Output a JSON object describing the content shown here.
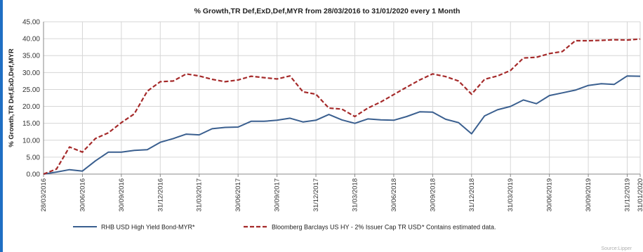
{
  "chart_data": {
    "type": "line",
    "title": "% Growth,TR Def,ExD,Def,MYR from 28/03/2016 to 31/01/2020 every 1 Month",
    "ylabel": "% Growth,TR Def,ExD,Def,MYR",
    "xlabel": "",
    "ylim": [
      0,
      45
    ],
    "yticks": [
      "0.00",
      "5.00",
      "10.00",
      "15.00",
      "20.00",
      "25.00",
      "30.00",
      "35.00",
      "40.00",
      "45.00"
    ],
    "grid": true,
    "legend_position": "bottom",
    "x": [
      "28/03/2016",
      "30/04/2016",
      "31/05/2016",
      "30/06/2016",
      "31/07/2016",
      "31/08/2016",
      "30/09/2016",
      "31/10/2016",
      "30/11/2016",
      "31/12/2016",
      "31/01/2017",
      "28/02/2017",
      "31/03/2017",
      "30/04/2017",
      "31/05/2017",
      "30/06/2017",
      "31/07/2017",
      "31/08/2017",
      "30/09/2017",
      "31/10/2017",
      "30/11/2017",
      "31/12/2017",
      "31/01/2018",
      "28/02/2018",
      "31/03/2018",
      "30/04/2018",
      "31/05/2018",
      "30/06/2018",
      "31/07/2018",
      "31/08/2018",
      "30/09/2018",
      "31/10/2018",
      "30/11/2018",
      "31/12/2018",
      "31/01/2019",
      "28/02/2019",
      "31/03/2019",
      "30/04/2019",
      "31/05/2019",
      "30/06/2019",
      "31/07/2019",
      "31/08/2019",
      "30/09/2019",
      "31/10/2019",
      "30/11/2019",
      "31/12/2019",
      "31/01/2020"
    ],
    "xtick_labels": [
      "28/03/2016",
      "30/06/2016",
      "30/09/2016",
      "31/12/2016",
      "31/03/2017",
      "30/06/2017",
      "30/09/2017",
      "31/12/2017",
      "31/03/2018",
      "30/06/2018",
      "30/09/2018",
      "31/12/2018",
      "31/03/2019",
      "30/06/2019",
      "30/09/2019",
      "31/12/2019",
      "31/01/2020"
    ],
    "series": [
      {
        "name": "RHB USD High Yield Bond-MYR*",
        "color": "#3a5f8f",
        "style": "solid",
        "values": [
          0.0,
          0.6,
          1.3,
          0.9,
          3.9,
          6.5,
          6.5,
          7.0,
          7.2,
          9.4,
          10.5,
          11.8,
          11.6,
          13.4,
          13.8,
          13.9,
          15.6,
          15.6,
          15.9,
          16.5,
          15.4,
          15.9,
          17.6,
          16.0,
          15.0,
          16.3,
          16.0,
          15.9,
          17.0,
          18.4,
          18.3,
          16.2,
          15.2,
          11.9,
          17.2,
          19.0,
          20.0,
          21.9,
          20.8,
          23.2,
          24.0,
          24.8,
          26.2,
          26.7,
          26.5,
          29.0,
          28.9
        ]
      },
      {
        "name": "Bloomberg Barclays US HY - 2% Issuer Cap TR USD",
        "color": "#a52a2a",
        "style": "dashed",
        "values": [
          0.0,
          1.5,
          8.0,
          6.5,
          10.5,
          12.2,
          15.2,
          17.8,
          24.5,
          27.3,
          27.5,
          29.6,
          29.0,
          28.0,
          27.3,
          27.8,
          28.9,
          28.5,
          28.1,
          29.0,
          24.3,
          23.6,
          19.5,
          19.2,
          17.0,
          19.5,
          21.3,
          23.5,
          25.7,
          27.8,
          29.6,
          28.8,
          27.5,
          23.6,
          28.0,
          29.0,
          30.6,
          34.3,
          34.5,
          35.6,
          36.2,
          39.4,
          39.4,
          39.5,
          39.7,
          39.6,
          39.9
        ]
      }
    ],
    "legend_note": "*  Contains estimated data."
  },
  "footer": {
    "source": "Source:Lipper"
  }
}
